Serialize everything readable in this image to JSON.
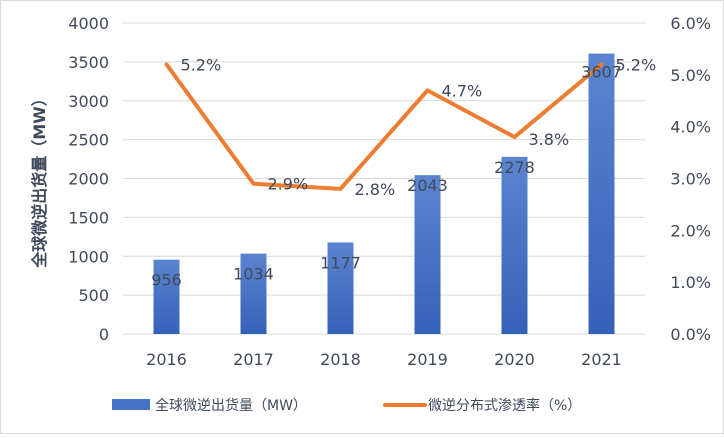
{
  "chart_data": {
    "type": "bar+line",
    "categories": [
      "2016",
      "2017",
      "2018",
      "2019",
      "2020",
      "2021"
    ],
    "series": [
      {
        "name": "全球微逆出货量（MW）",
        "type": "bar",
        "axis": "left",
        "values": [
          956,
          1034,
          1177,
          2043,
          2278,
          3607
        ],
        "labels": [
          "956",
          "1034",
          "1177",
          "2043",
          "2278",
          "3607"
        ],
        "color": "#4472c4"
      },
      {
        "name": "微逆分布式渗透率（%）",
        "type": "line",
        "axis": "right",
        "values": [
          5.2,
          2.9,
          2.8,
          4.7,
          3.8,
          5.2
        ],
        "labels": [
          "5.2%",
          "2.9%",
          "2.8%",
          "4.7%",
          "3.8%",
          "5.2%"
        ],
        "color": "#ed7d31"
      }
    ],
    "ylabel": "全球微逆出货量（MW）",
    "ylim": [
      0,
      4000
    ],
    "yticks": [
      "0",
      "500",
      "1000",
      "1500",
      "2000",
      "2500",
      "3000",
      "3500",
      "4000"
    ],
    "y2lim": [
      0,
      6
    ],
    "y2ticks": [
      "0.0%",
      "1.0%",
      "2.0%",
      "3.0%",
      "4.0%",
      "5.0%",
      "6.0%"
    ],
    "grid": true,
    "legend": "bottom"
  }
}
